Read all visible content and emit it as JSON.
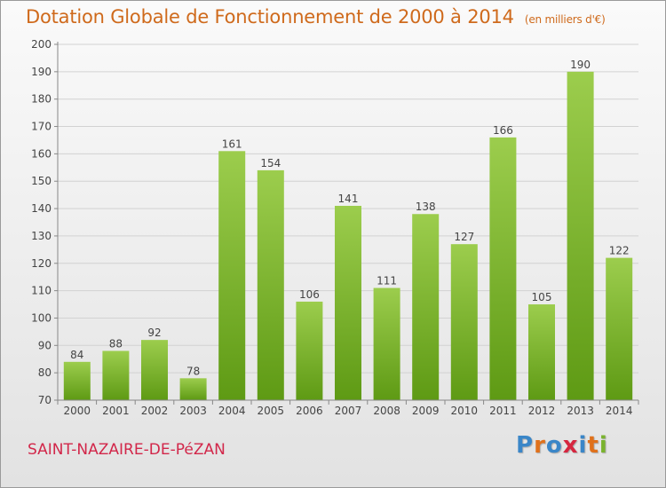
{
  "header": {
    "title": "Dotation Globale de Fonctionnement de 2000 à 2014",
    "subtitle": "(en milliers d'€)"
  },
  "commune": "SAINT-NAZAIRE-DE-PéZAN",
  "logo": {
    "text": "Proxiti",
    "letters": [
      {
        "ch": "P",
        "color": "#3a86c8"
      },
      {
        "ch": "r",
        "color": "#e0711b"
      },
      {
        "ch": "o",
        "color": "#3a86c8"
      },
      {
        "ch": "x",
        "color": "#d6263f"
      },
      {
        "ch": "i",
        "color": "#3a86c8"
      },
      {
        "ch": "t",
        "color": "#e0711b"
      },
      {
        "ch": "i",
        "color": "#7ab32e"
      }
    ]
  },
  "chart_data": {
    "type": "bar",
    "categories": [
      "2000",
      "2001",
      "2002",
      "2003",
      "2004",
      "2005",
      "2006",
      "2007",
      "2008",
      "2009",
      "2010",
      "2011",
      "2012",
      "2013",
      "2014"
    ],
    "values": [
      84,
      88,
      92,
      78,
      161,
      154,
      106,
      141,
      111,
      138,
      127,
      166,
      105,
      190,
      122
    ],
    "title": "Dotation Globale de Fonctionnement de 2000 à 2014",
    "xlabel": "",
    "ylabel": "",
    "ylim": [
      70,
      200
    ],
    "yticks": [
      70,
      80,
      90,
      100,
      110,
      120,
      130,
      140,
      150,
      160,
      170,
      180,
      190,
      200
    ],
    "grid": true,
    "bar_color": "#7cb82f"
  }
}
